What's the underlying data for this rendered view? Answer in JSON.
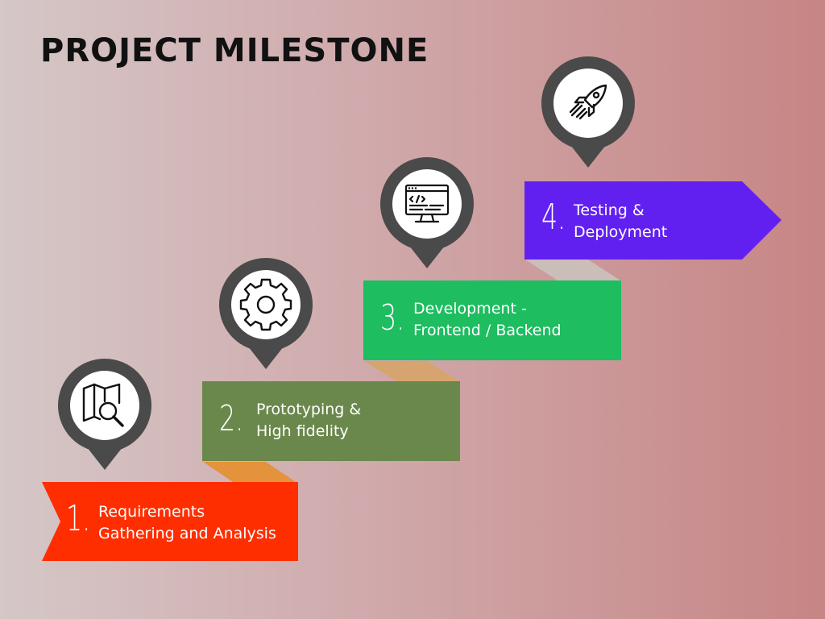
{
  "title": "PROJECT MILESTONE",
  "colors": {
    "step1": "#ff2e00",
    "step2": "#6b884c",
    "step3": "#1dbd60",
    "step4": "#6220f0",
    "connector_orange": "#e5923d",
    "connector_tan": "#d6a56f",
    "connector_grey": "#cbbdb8",
    "pin": "#4a4a4a",
    "pin_inner": "#ffffff"
  },
  "steps": [
    {
      "number": "1.",
      "line1": "Requirements",
      "line2": "Gathering and Analysis",
      "icon": "map-search-icon"
    },
    {
      "number": "2.",
      "line1": "Prototyping &",
      "line2": "High fidelity",
      "icon": "gear-icon"
    },
    {
      "number": "3.",
      "line1": "Development -",
      "line2": "Frontend / Backend",
      "icon": "code-monitor-icon"
    },
    {
      "number": "4.",
      "line1": "Testing &",
      "line2": "Deployment",
      "icon": "rocket-icon"
    }
  ]
}
